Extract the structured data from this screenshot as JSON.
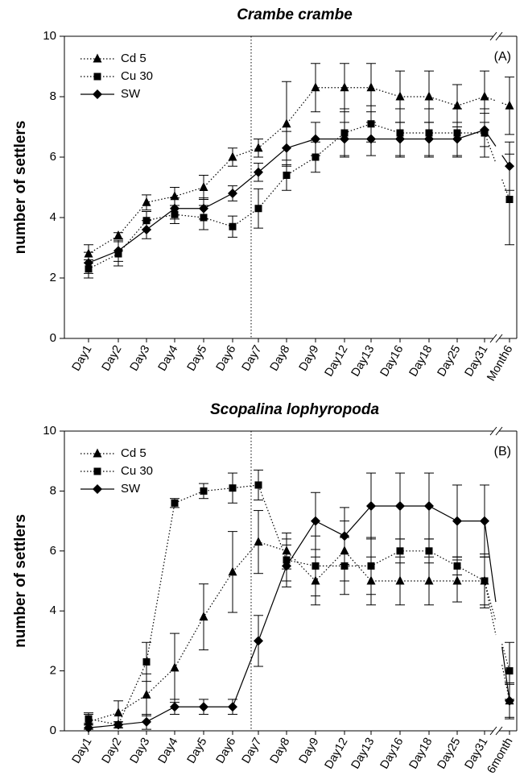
{
  "chart_data": [
    {
      "type": "line",
      "title": "Crambe crambe",
      "panel_label": "(A)",
      "ylabel": "number of settlers",
      "xlabel": "",
      "ylim": [
        0,
        10
      ],
      "yticks": [
        0,
        2,
        4,
        6,
        8,
        10
      ],
      "grid": false,
      "legend_position": "top-left",
      "categories": [
        "Day1",
        "Day2",
        "Day3",
        "Day4",
        "Day5",
        "Day6",
        "Day7",
        "Day8",
        "Day9",
        "Day12",
        "Day13",
        "Day16",
        "Day18",
        "Day25",
        "Day31",
        "Month6"
      ],
      "break_before_last": true,
      "vertical_reference_category": "Day7",
      "series": [
        {
          "name": "Cd 5",
          "marker": "triangle",
          "line": "dotted",
          "values": [
            2.8,
            3.4,
            4.5,
            4.7,
            5.0,
            6.0,
            6.3,
            7.1,
            8.3,
            8.3,
            8.3,
            8.0,
            8.0,
            7.7,
            8.0,
            7.7
          ],
          "errors": [
            0.3,
            0.1,
            0.25,
            0.3,
            0.4,
            0.3,
            0.3,
            1.4,
            0.8,
            0.8,
            0.8,
            0.85,
            0.85,
            0.7,
            0.85,
            0.95
          ]
        },
        {
          "name": "Cu 30",
          "marker": "square",
          "line": "dotted",
          "values": [
            2.3,
            2.8,
            3.9,
            4.1,
            4.0,
            3.7,
            4.3,
            5.4,
            6.0,
            6.8,
            7.1,
            6.8,
            6.8,
            6.8,
            6.8,
            4.6
          ],
          "errors": [
            0.3,
            0.4,
            0.3,
            0.3,
            0.4,
            0.35,
            0.65,
            0.5,
            0.5,
            0.8,
            0.6,
            0.8,
            0.8,
            0.8,
            0.8,
            1.5
          ]
        },
        {
          "name": "SW",
          "marker": "diamond",
          "line": "solid",
          "values": [
            2.5,
            2.9,
            3.6,
            4.3,
            4.3,
            4.8,
            5.5,
            6.3,
            6.6,
            6.6,
            6.6,
            6.6,
            6.6,
            6.6,
            6.9,
            5.7
          ],
          "errors": [
            0.35,
            0.35,
            0.3,
            0.35,
            0.35,
            0.25,
            0.3,
            0.55,
            0.55,
            0.55,
            0.55,
            0.55,
            0.55,
            0.55,
            0.55,
            0.8
          ]
        }
      ]
    },
    {
      "type": "line",
      "title": "Scopalina lophyropoda",
      "panel_label": "(B)",
      "ylabel": "number of settlers",
      "xlabel": "",
      "ylim": [
        0,
        10
      ],
      "yticks": [
        0,
        2,
        4,
        6,
        8,
        10
      ],
      "grid": false,
      "legend_position": "top-left",
      "categories": [
        "Day1",
        "Day2",
        "Day3",
        "Day4",
        "Day5",
        "Day6",
        "Day7",
        "Day8",
        "Day9",
        "Day12",
        "Day13",
        "Day16",
        "Day18",
        "Day25",
        "Day31",
        "6month"
      ],
      "break_before_last": true,
      "vertical_reference_category": "Day7",
      "series": [
        {
          "name": "Cd 5",
          "marker": "triangle",
          "line": "dotted",
          "values": [
            0.3,
            0.6,
            1.2,
            2.1,
            3.8,
            5.3,
            6.3,
            6.0,
            5.0,
            6.0,
            5.0,
            5.0,
            5.0,
            5.0,
            5.0,
            1.0
          ],
          "errors": [
            0.25,
            0.4,
            0.7,
            1.15,
            1.1,
            1.35,
            1.05,
            0.6,
            0.8,
            1.0,
            0.8,
            0.8,
            0.8,
            0.7,
            0.8,
            0.55
          ]
        },
        {
          "name": "Cu 30",
          "marker": "square",
          "line": "dotted",
          "values": [
            0.4,
            0.2,
            2.3,
            7.6,
            8.0,
            8.1,
            8.2,
            5.7,
            5.5,
            5.5,
            5.5,
            6.0,
            6.0,
            5.5,
            5.0,
            2.0
          ],
          "errors": [
            0.2,
            0.1,
            0.65,
            0.15,
            0.25,
            0.5,
            0.5,
            0.7,
            1.0,
            0.95,
            0.95,
            0.4,
            0.4,
            0.3,
            0.9,
            0.95
          ]
        },
        {
          "name": "SW",
          "marker": "diamond",
          "line": "solid",
          "values": [
            0.1,
            0.2,
            0.3,
            0.8,
            0.8,
            0.8,
            3.0,
            5.5,
            7.0,
            6.5,
            7.5,
            7.5,
            7.5,
            7.0,
            7.0,
            1.0
          ],
          "errors": [
            0.15,
            0.1,
            0.25,
            0.25,
            0.25,
            0.25,
            0.85,
            0.7,
            0.95,
            0.95,
            1.1,
            1.1,
            1.1,
            1.2,
            1.2,
            0.6
          ]
        }
      ]
    }
  ]
}
